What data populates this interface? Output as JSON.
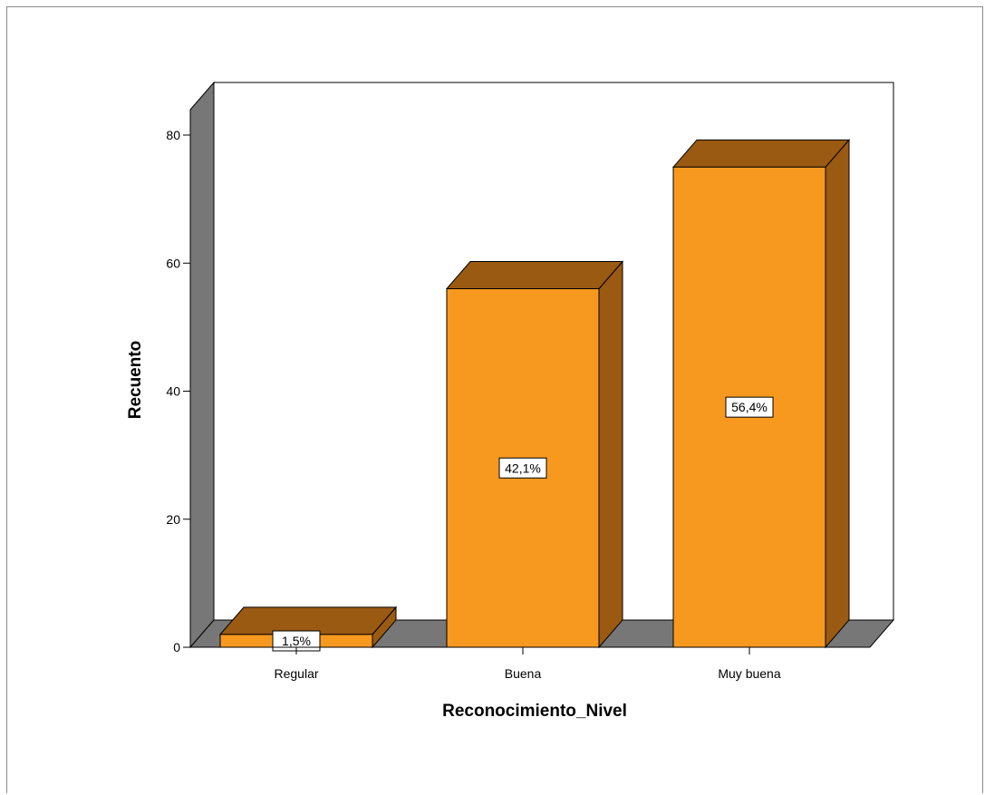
{
  "chart_data": {
    "type": "bar",
    "style": "3d",
    "categories": [
      "Regular",
      "Buena",
      "Muy buena"
    ],
    "values": [
      2,
      56,
      75
    ],
    "data_labels": [
      "1,5%",
      "42,1%",
      "56,4%"
    ],
    "title": "",
    "xlabel": "Reconocimiento_Nivel",
    "ylabel": "Recuento",
    "ylim": [
      0,
      80
    ],
    "yticks": [
      "0",
      "20",
      "40",
      "60",
      "80"
    ],
    "grid": false,
    "legend": "none",
    "colors": {
      "bar_front": "#f7991f",
      "bar_side": "#9a5a12",
      "bar_top": "#9a5a12",
      "wall": "#777777",
      "outline": "#000000"
    }
  }
}
